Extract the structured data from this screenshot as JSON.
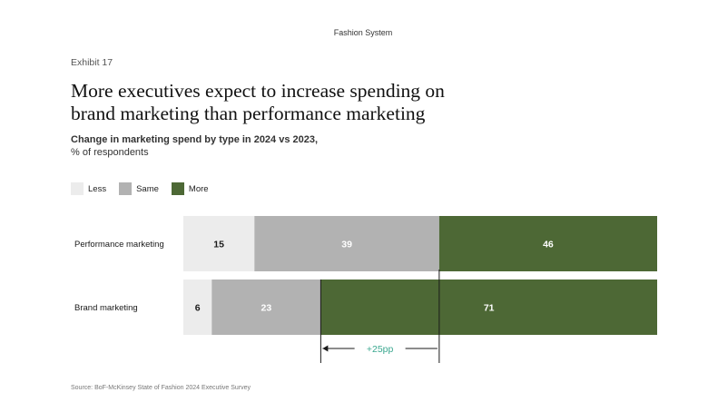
{
  "header": {
    "section": "Fashion System"
  },
  "exhibit": "Exhibit 17",
  "title": "More executives expect to increase spending on brand marketing than performance marketing",
  "subtitle": {
    "line1": "Change in marketing spend by type in 2024 vs 2023,",
    "line2": "% of respondents"
  },
  "source": "Source: BoF-McKinsey State of Fashion 2024 Executive Survey",
  "colors": {
    "less": "#ececec",
    "same": "#b2b2b2",
    "more": "#4d6835",
    "annotation": "#3aa78f"
  },
  "chart_data": {
    "type": "bar",
    "orientation": "horizontal",
    "stacked": true,
    "categories": [
      "Performance marketing",
      "Brand marketing"
    ],
    "series": [
      {
        "name": "Less",
        "values": [
          15,
          6
        ]
      },
      {
        "name": "Same",
        "values": [
          39,
          23
        ]
      },
      {
        "name": "More",
        "values": [
          46,
          71
        ]
      }
    ],
    "legend_position": "top-left",
    "annotation": {
      "label": "+25pp"
    }
  }
}
